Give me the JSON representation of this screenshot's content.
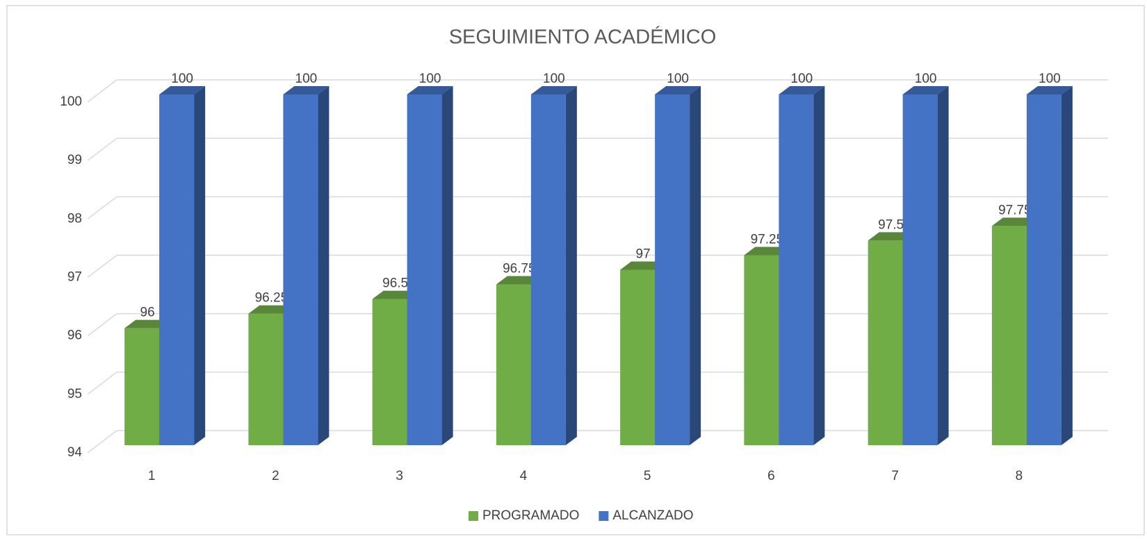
{
  "chart_data": {
    "type": "bar3d",
    "title": "SEGUIMIENTO ACADÉMICO",
    "categories": [
      "1",
      "2",
      "3",
      "4",
      "5",
      "6",
      "7",
      "8"
    ],
    "series": [
      {
        "name": "PROGRAMADO",
        "color": "#70ad47",
        "values": [
          96,
          96.25,
          96.5,
          96.75,
          97,
          97.25,
          97.5,
          97.75
        ]
      },
      {
        "name": "ALCANZADO",
        "color": "#4472c4",
        "values": [
          100,
          100,
          100,
          100,
          100,
          100,
          100,
          100
        ]
      }
    ],
    "ylim": [
      94,
      100
    ],
    "yticks": [
      94,
      95,
      96,
      97,
      98,
      99,
      100
    ],
    "grid": true,
    "legend": "bottom"
  }
}
